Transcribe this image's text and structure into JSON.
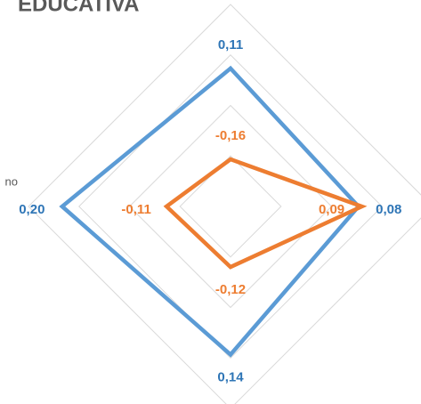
{
  "chart_data": {
    "type": "radar",
    "title": "EDUCATIVA",
    "categories": [
      null,
      null,
      null,
      "no"
    ],
    "ylim": [
      -0.3,
      0.3
    ],
    "yticks": [
      -0.3,
      -0.15,
      0,
      0.15,
      0.3
    ],
    "grid": true,
    "series": [
      {
        "color": "#5b9bd5",
        "label_color": "#2e75b6",
        "values": [
          0.11,
          0.08,
          0.14,
          0.2
        ],
        "value_labels": [
          "0,11",
          "0,08",
          "0,14",
          "0,20"
        ]
      },
      {
        "color": "#ed7d31",
        "label_color": "#ed7d31",
        "values": [
          -0.16,
          0.09,
          -0.12,
          -0.11
        ],
        "value_labels": [
          "-0,16",
          "0,09",
          "-0,12",
          "-0,11"
        ]
      }
    ]
  }
}
